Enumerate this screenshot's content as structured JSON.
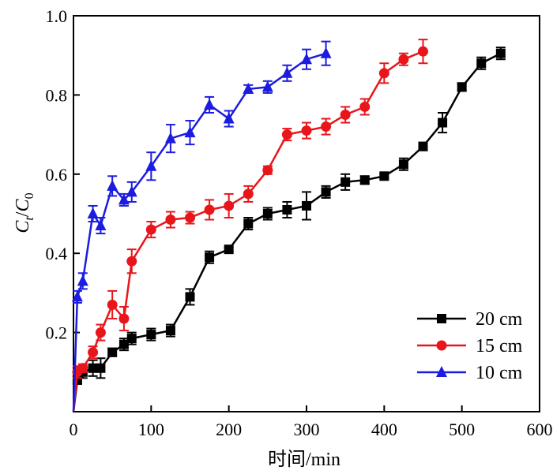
{
  "chart_data": {
    "type": "line",
    "title": "",
    "xlabel": "时间/min",
    "ylabel": "Ct/C0",
    "ylabel_parts": {
      "main": "C",
      "sub1": "t",
      "slash": "/",
      "main2": "C",
      "sub2": "0"
    },
    "xlim": [
      0,
      600
    ],
    "ylim": [
      0,
      1.0
    ],
    "xticks": [
      0,
      100,
      200,
      300,
      400,
      500,
      600
    ],
    "xtick_labels": [
      "0",
      "100",
      "200",
      "300",
      "400",
      "500",
      "600"
    ],
    "yticks": [
      0.2,
      0.4,
      0.6,
      0.8,
      1.0
    ],
    "ytick_labels": [
      "0.2",
      "0.4",
      "0.6",
      "0.8",
      "1.0"
    ],
    "grid": false,
    "legend_position": "bottom-right",
    "series": [
      {
        "name": "20 cm",
        "color": "#000000",
        "marker": "square",
        "points": [
          {
            "x": 0,
            "y": 0.0,
            "err": 0
          },
          {
            "x": 5,
            "y": 0.08,
            "err": 0.01
          },
          {
            "x": 12,
            "y": 0.1,
            "err": 0.015
          },
          {
            "x": 25,
            "y": 0.11,
            "err": 0.02
          },
          {
            "x": 35,
            "y": 0.11,
            "err": 0.025
          },
          {
            "x": 50,
            "y": 0.15,
            "err": 0.01
          },
          {
            "x": 65,
            "y": 0.17,
            "err": 0.015
          },
          {
            "x": 75,
            "y": 0.185,
            "err": 0.015
          },
          {
            "x": 100,
            "y": 0.195,
            "err": 0.015
          },
          {
            "x": 125,
            "y": 0.205,
            "err": 0.015
          },
          {
            "x": 150,
            "y": 0.29,
            "err": 0.02
          },
          {
            "x": 175,
            "y": 0.39,
            "err": 0.015
          },
          {
            "x": 200,
            "y": 0.41,
            "err": 0.005
          },
          {
            "x": 225,
            "y": 0.475,
            "err": 0.015
          },
          {
            "x": 250,
            "y": 0.5,
            "err": 0.015
          },
          {
            "x": 275,
            "y": 0.51,
            "err": 0.02
          },
          {
            "x": 300,
            "y": 0.52,
            "err": 0.035
          },
          {
            "x": 325,
            "y": 0.555,
            "err": 0.015
          },
          {
            "x": 350,
            "y": 0.58,
            "err": 0.02
          },
          {
            "x": 375,
            "y": 0.585,
            "err": 0.01
          },
          {
            "x": 400,
            "y": 0.595,
            "err": 0.005
          },
          {
            "x": 425,
            "y": 0.625,
            "err": 0.015
          },
          {
            "x": 450,
            "y": 0.67,
            "err": 0.01
          },
          {
            "x": 475,
            "y": 0.73,
            "err": 0.025
          },
          {
            "x": 500,
            "y": 0.82,
            "err": 0.01
          },
          {
            "x": 525,
            "y": 0.88,
            "err": 0.015
          },
          {
            "x": 550,
            "y": 0.905,
            "err": 0.015
          }
        ]
      },
      {
        "name": "15 cm",
        "color": "#e8161b",
        "marker": "circle",
        "points": [
          {
            "x": 0,
            "y": 0.0,
            "err": 0
          },
          {
            "x": 5,
            "y": 0.1,
            "err": 0.015
          },
          {
            "x": 12,
            "y": 0.11,
            "err": 0.01
          },
          {
            "x": 25,
            "y": 0.15,
            "err": 0.015
          },
          {
            "x": 35,
            "y": 0.2,
            "err": 0.02
          },
          {
            "x": 50,
            "y": 0.27,
            "err": 0.035
          },
          {
            "x": 65,
            "y": 0.235,
            "err": 0.03
          },
          {
            "x": 75,
            "y": 0.38,
            "err": 0.03
          },
          {
            "x": 100,
            "y": 0.46,
            "err": 0.02
          },
          {
            "x": 125,
            "y": 0.485,
            "err": 0.02
          },
          {
            "x": 150,
            "y": 0.49,
            "err": 0.015
          },
          {
            "x": 175,
            "y": 0.51,
            "err": 0.025
          },
          {
            "x": 200,
            "y": 0.52,
            "err": 0.03
          },
          {
            "x": 225,
            "y": 0.55,
            "err": 0.02
          },
          {
            "x": 250,
            "y": 0.61,
            "err": 0.01
          },
          {
            "x": 275,
            "y": 0.7,
            "err": 0.015
          },
          {
            "x": 300,
            "y": 0.71,
            "err": 0.02
          },
          {
            "x": 325,
            "y": 0.72,
            "err": 0.02
          },
          {
            "x": 350,
            "y": 0.75,
            "err": 0.02
          },
          {
            "x": 375,
            "y": 0.77,
            "err": 0.02
          },
          {
            "x": 400,
            "y": 0.855,
            "err": 0.025
          },
          {
            "x": 425,
            "y": 0.89,
            "err": 0.015
          },
          {
            "x": 450,
            "y": 0.91,
            "err": 0.03
          }
        ]
      },
      {
        "name": "10 cm",
        "color": "#1c1ce0",
        "marker": "triangle",
        "points": [
          {
            "x": 0,
            "y": 0.0,
            "err": 0
          },
          {
            "x": 5,
            "y": 0.29,
            "err": 0.015
          },
          {
            "x": 12,
            "y": 0.33,
            "err": 0.02
          },
          {
            "x": 25,
            "y": 0.5,
            "err": 0.02
          },
          {
            "x": 35,
            "y": 0.47,
            "err": 0.02
          },
          {
            "x": 50,
            "y": 0.57,
            "err": 0.025
          },
          {
            "x": 65,
            "y": 0.535,
            "err": 0.015
          },
          {
            "x": 75,
            "y": 0.555,
            "err": 0.025
          },
          {
            "x": 100,
            "y": 0.62,
            "err": 0.035
          },
          {
            "x": 125,
            "y": 0.69,
            "err": 0.035
          },
          {
            "x": 150,
            "y": 0.705,
            "err": 0.03
          },
          {
            "x": 175,
            "y": 0.775,
            "err": 0.02
          },
          {
            "x": 200,
            "y": 0.74,
            "err": 0.02
          },
          {
            "x": 225,
            "y": 0.815,
            "err": 0.01
          },
          {
            "x": 250,
            "y": 0.82,
            "err": 0.015
          },
          {
            "x": 275,
            "y": 0.855,
            "err": 0.02
          },
          {
            "x": 300,
            "y": 0.89,
            "err": 0.025
          },
          {
            "x": 325,
            "y": 0.905,
            "err": 0.03
          }
        ]
      }
    ]
  }
}
